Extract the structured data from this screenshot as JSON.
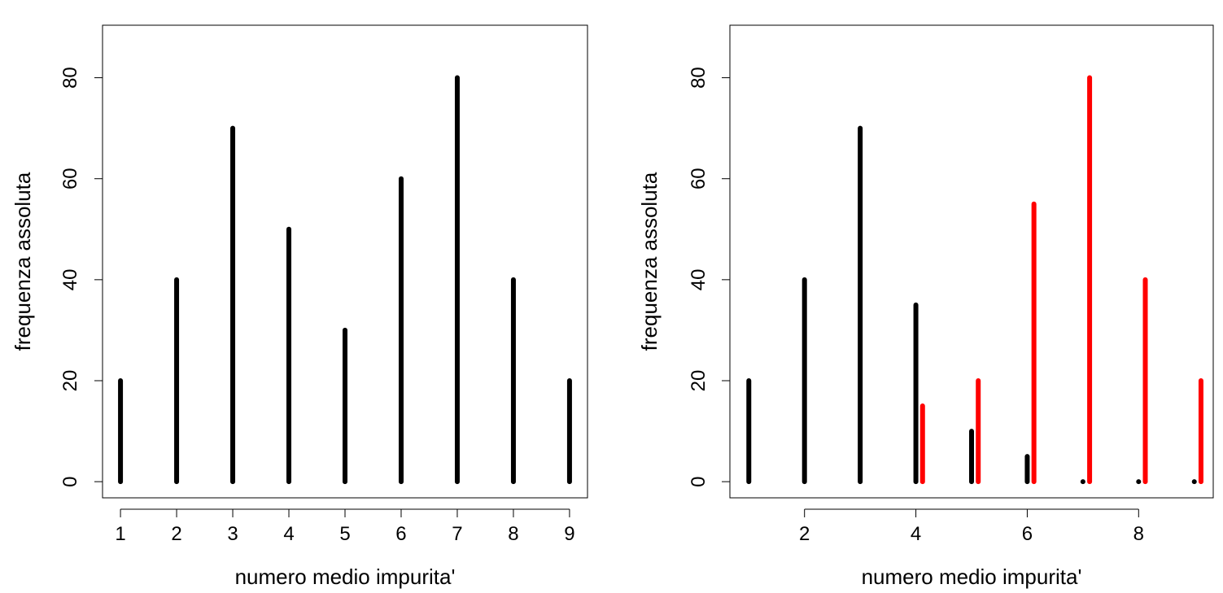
{
  "chart_data": [
    {
      "type": "bar",
      "xlabel": "numero medio impurita'",
      "ylabel": "frequenza assoluta",
      "xlim": [
        0.68,
        9.32
      ],
      "ylim": [
        -3.2,
        90.4
      ],
      "xticks": [
        1,
        2,
        3,
        4,
        5,
        6,
        7,
        8,
        9
      ],
      "yticks": [
        0,
        20,
        40,
        60,
        80
      ],
      "series": [
        {
          "color": "#000000",
          "x": [
            1,
            2,
            3,
            4,
            5,
            6,
            7,
            8,
            9
          ],
          "values": [
            20,
            40,
            70,
            50,
            30,
            60,
            80,
            40,
            20
          ]
        }
      ]
    },
    {
      "type": "bar",
      "xlabel": "numero medio impurita'",
      "ylabel": "frequenza assoluta",
      "xlim": [
        0.66,
        9.34
      ],
      "ylim": [
        -3.2,
        90.4
      ],
      "xticks": [
        2,
        4,
        6,
        8
      ],
      "yticks": [
        0,
        20,
        40,
        60,
        80
      ],
      "series": [
        {
          "color": "#000000",
          "x": [
            1,
            2,
            3,
            4,
            5,
            6,
            7,
            8,
            9
          ],
          "values": [
            20,
            40,
            70,
            35,
            10,
            5,
            0,
            0,
            0
          ]
        },
        {
          "color": "#ff0000",
          "x": [
            4.12,
            5.12,
            6.12,
            7.12,
            8.12,
            9.12
          ],
          "values": [
            15,
            20,
            55,
            80,
            40,
            20
          ]
        }
      ]
    }
  ]
}
